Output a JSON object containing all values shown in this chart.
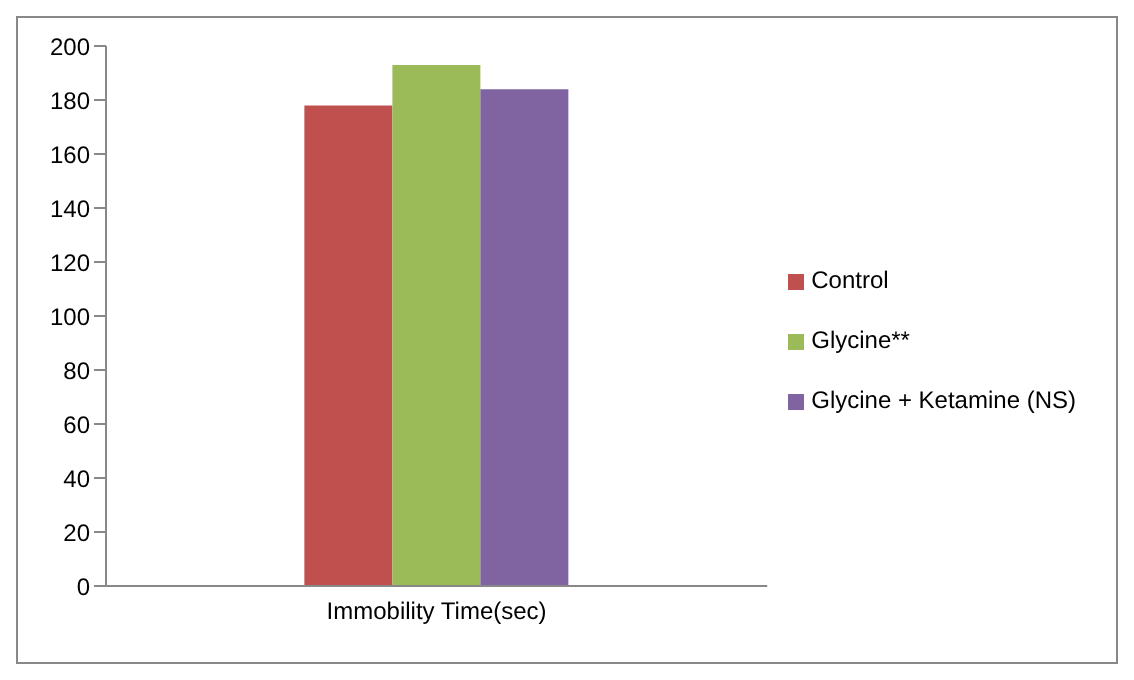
{
  "chart_data": {
    "type": "bar",
    "categories": [
      "Immobility Time(sec)"
    ],
    "series": [
      {
        "name": "Control",
        "color": "#c0504d",
        "values": [
          178
        ]
      },
      {
        "name": "Glycine**",
        "color": "#9bbb59",
        "values": [
          193
        ]
      },
      {
        "name": "Glycine + Ketamine (NS)",
        "color": "#8064a2",
        "values": [
          184
        ]
      }
    ],
    "ylim": [
      0,
      200
    ],
    "yticks": [
      0,
      20,
      40,
      60,
      80,
      100,
      120,
      140,
      160,
      180,
      200
    ],
    "grid": false,
    "legend": "right"
  }
}
